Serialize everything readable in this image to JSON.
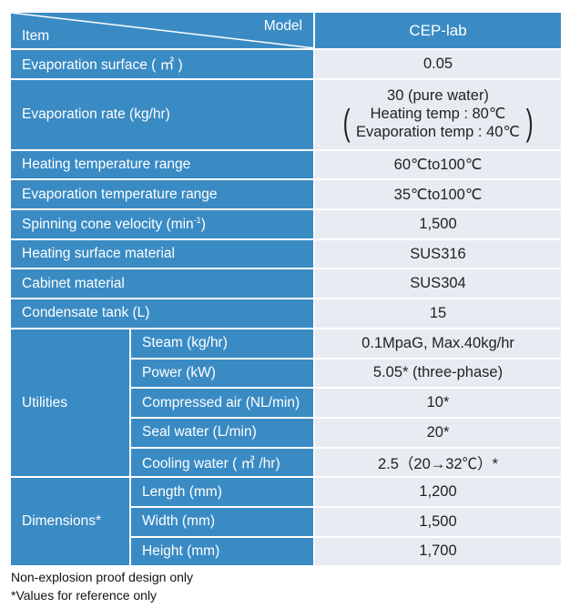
{
  "header": {
    "model_label": "Model",
    "item_label": "Item",
    "model_name": "CEP-lab"
  },
  "rows": [
    {
      "label": "Evaporation surface ( ㎡ )",
      "value": "0.05"
    },
    {
      "label": "Evaporation rate (kg/hr)",
      "value": "30 (pure water)",
      "value_line2": "Heating temp : 80℃",
      "value_line3": "Evaporation temp : 40℃"
    },
    {
      "label": "Heating temperature range",
      "value": "60℃to100℃"
    },
    {
      "label": "Evaporation temperature range",
      "value": "35℃to100℃"
    },
    {
      "label": "Spinning cone velocity (min",
      "label_sup": "-1",
      "label_end": ")",
      "value": "1,500"
    },
    {
      "label": "Heating surface material",
      "value": "SUS316"
    },
    {
      "label": "Cabinet material",
      "value": "SUS304"
    },
    {
      "label": "Condensate tank (L)",
      "value": "15"
    }
  ],
  "utilities": {
    "label": "Utilities",
    "items": [
      {
        "label": "Steam (kg/hr)",
        "value": "0.1MpaG, Max.40kg/hr"
      },
      {
        "label": "Power (kW)",
        "value": "5.05* (three-phase)"
      },
      {
        "label": "Compressed air (NL/min)",
        "value": "10*"
      },
      {
        "label": "Seal water (L/min)",
        "value": "20*"
      },
      {
        "label": "Cooling water ( ㎥ /hr)",
        "value": "2.5（20→32℃）*"
      }
    ]
  },
  "dimensions": {
    "label": "Dimensions*",
    "items": [
      {
        "label": "Length (mm)",
        "value": "1,200"
      },
      {
        "label": "Width (mm)",
        "value": "1,500"
      },
      {
        "label": "Height (mm)",
        "value": "1,700"
      }
    ]
  },
  "footnotes": [
    "Non-explosion proof design only",
    "*Values for reference only"
  ],
  "colors": {
    "header_blue": "#3a8bc4",
    "value_bg": "#e8ecf2"
  }
}
